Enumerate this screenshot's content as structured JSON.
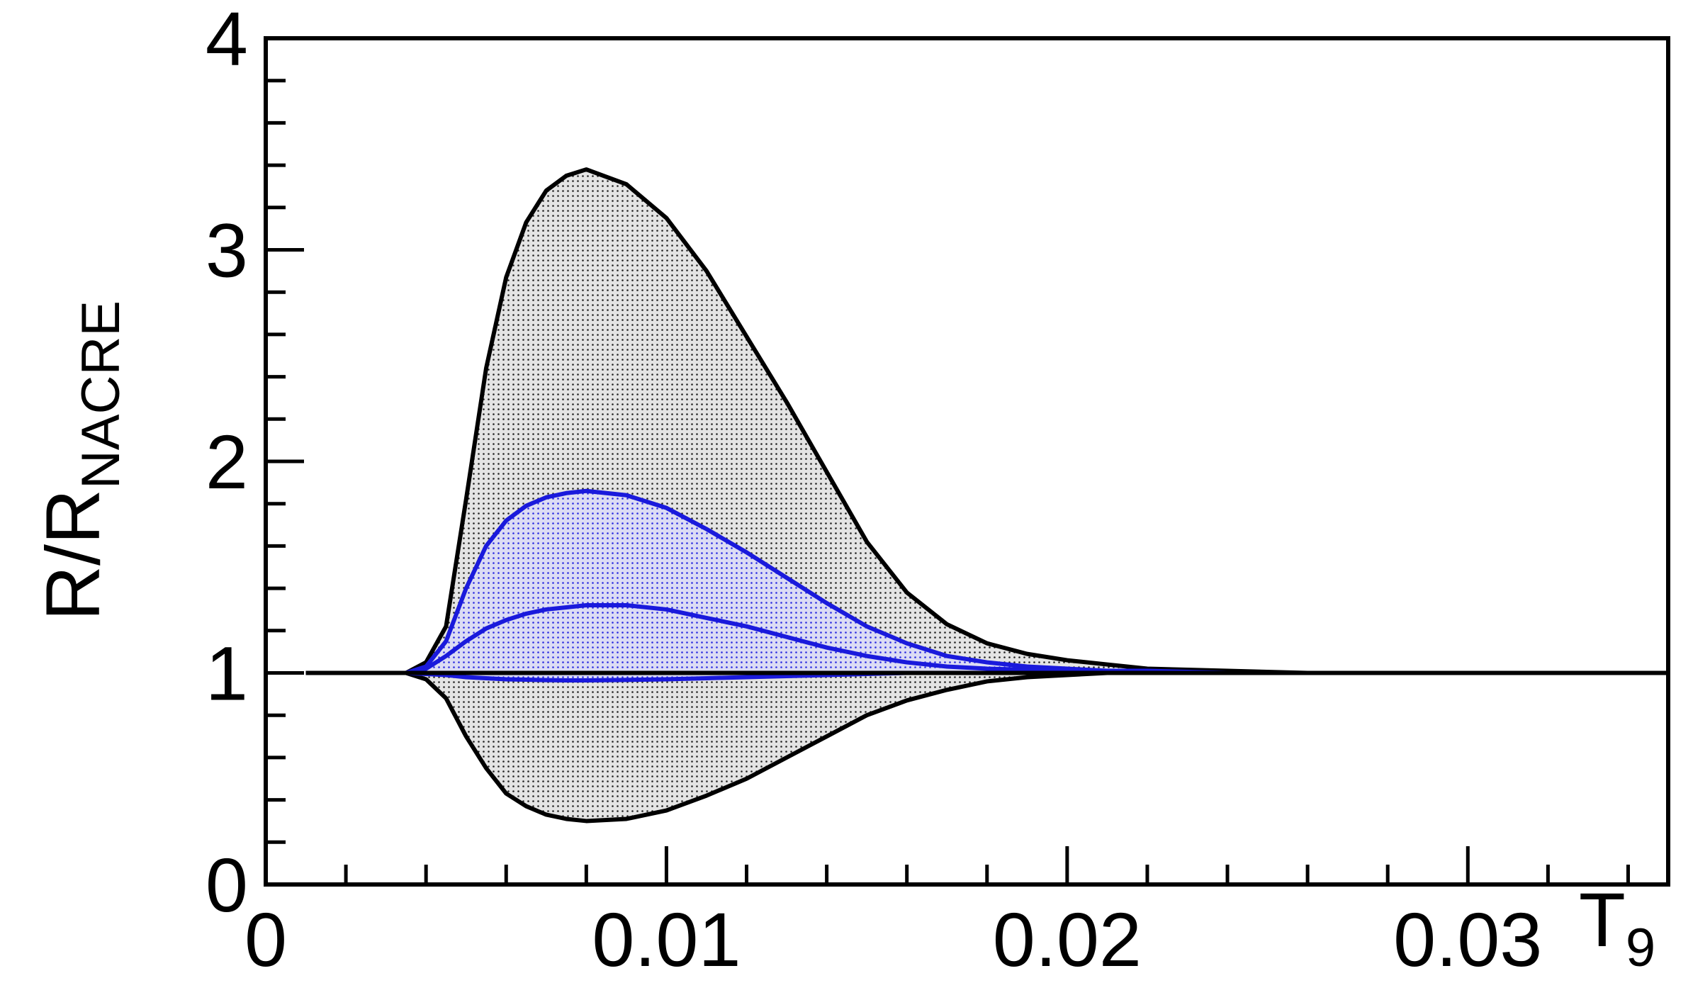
{
  "chart_data": {
    "type": "line",
    "x": [
      0.001,
      0.0035,
      0.004,
      0.0045,
      0.005,
      0.0055,
      0.006,
      0.0065,
      0.007,
      0.0075,
      0.008,
      0.009,
      0.01,
      0.011,
      0.012,
      0.013,
      0.014,
      0.015,
      0.016,
      0.017,
      0.018,
      0.019,
      0.02,
      0.021,
      0.022,
      0.024,
      0.026,
      0.035
    ],
    "series": [
      {
        "color": "#000000",
        "values": [
          1,
          1,
          1.05,
          1.22,
          1.82,
          2.44,
          2.87,
          3.13,
          3.28,
          3.35,
          3.38,
          3.31,
          3.15,
          2.9,
          2.59,
          2.28,
          1.95,
          1.62,
          1.38,
          1.23,
          1.14,
          1.09,
          1.06,
          1.04,
          1.02,
          1.01,
          1,
          1
        ]
      },
      {
        "color": "#000000",
        "values": [
          1,
          1,
          0.97,
          0.88,
          0.7,
          0.55,
          0.43,
          0.37,
          0.33,
          0.31,
          0.3,
          0.31,
          0.35,
          0.42,
          0.5,
          0.6,
          0.7,
          0.8,
          0.87,
          0.92,
          0.96,
          0.98,
          0.99,
          1,
          1,
          1,
          1,
          1
        ]
      },
      {
        "color": "#1a1adc",
        "values": [
          1,
          1,
          1.03,
          1.15,
          1.4,
          1.6,
          1.72,
          1.79,
          1.83,
          1.85,
          1.86,
          1.84,
          1.78,
          1.68,
          1.57,
          1.45,
          1.33,
          1.22,
          1.14,
          1.08,
          1.05,
          1.03,
          1.02,
          1.01,
          1.01,
          1,
          1,
          1
        ]
      },
      {
        "color": "#1a1adc",
        "values": [
          1,
          1,
          1.02,
          1.08,
          1.15,
          1.21,
          1.25,
          1.28,
          1.3,
          1.31,
          1.32,
          1.32,
          1.3,
          1.26,
          1.22,
          1.17,
          1.12,
          1.08,
          1.05,
          1.03,
          1.02,
          1.015,
          1.01,
          1,
          1,
          1,
          1,
          1
        ]
      },
      {
        "color": "#1a1adc",
        "values": [
          1,
          1,
          0.995,
          0.99,
          0.98,
          0.975,
          0.97,
          0.968,
          0.966,
          0.965,
          0.965,
          0.967,
          0.97,
          0.975,
          0.98,
          0.985,
          0.99,
          0.995,
          1,
          1,
          1,
          1,
          1,
          1,
          1,
          1,
          1,
          1
        ]
      },
      {
        "color": "#000000",
        "values": [
          1,
          1,
          1,
          1,
          1,
          1,
          1,
          1,
          1,
          1,
          1,
          1,
          1,
          1,
          1,
          1,
          1,
          1,
          1,
          1,
          1,
          1,
          1,
          1,
          1,
          1,
          1,
          1
        ]
      }
    ],
    "xlim": [
      0,
      0.035
    ],
    "ylim": [
      0,
      4
    ],
    "xticks": [
      0,
      0.01,
      0.02,
      0.03
    ],
    "yticks": [
      0,
      1,
      2,
      3,
      4
    ],
    "xminorticks": [
      0.002,
      0.004,
      0.006,
      0.008,
      0.012,
      0.014,
      0.016,
      0.018,
      0.022,
      0.024,
      0.026,
      0.028,
      0.032,
      0.034
    ],
    "yminorticks": [
      0.2,
      0.4,
      0.6,
      0.8,
      1.2,
      1.4,
      1.6,
      1.8,
      2.2,
      2.4,
      2.6,
      2.8,
      3.2,
      3.4,
      3.6,
      3.8
    ],
    "xlabel": {
      "main": "T",
      "sub": "9"
    },
    "ylabel": {
      "main": "R/R",
      "sub": "NACRE"
    }
  }
}
